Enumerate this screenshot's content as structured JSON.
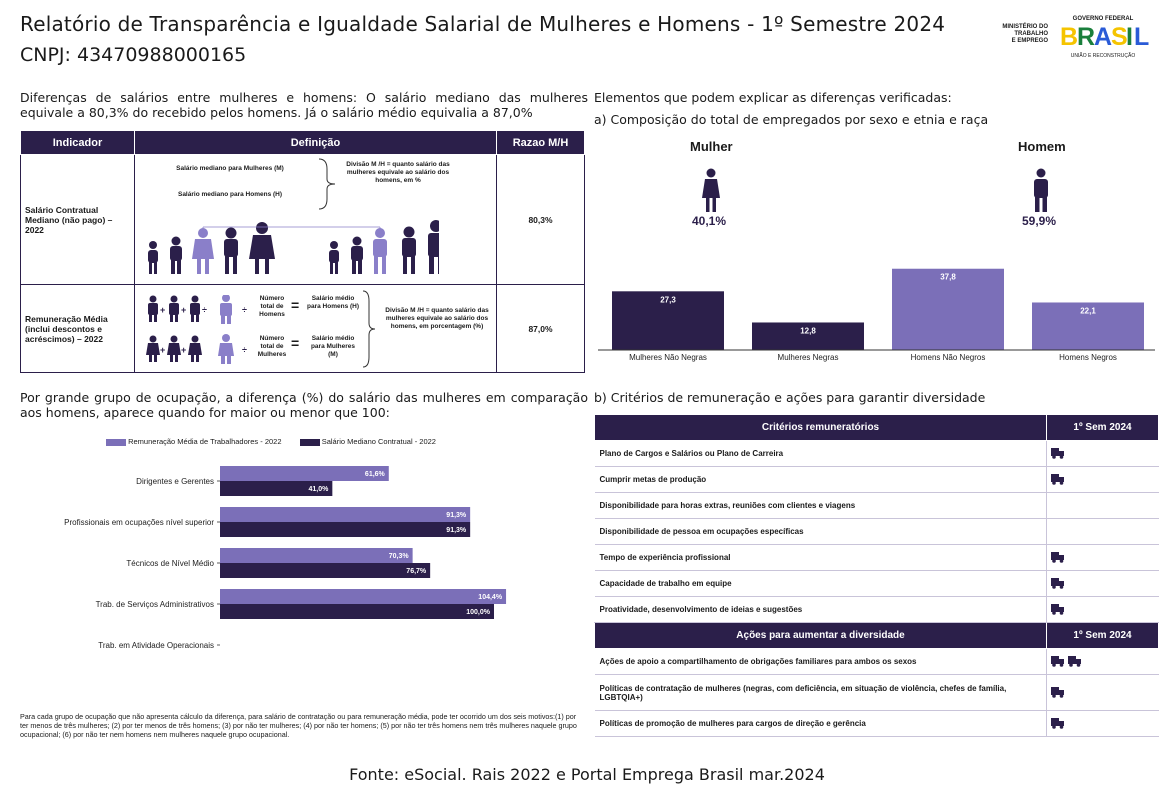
{
  "header": {
    "title": "Relatório de Transparência e Igualdade Salarial de Mulheres e Homens - 1º Semestre 2024",
    "cnpj": "CNPJ: 43470988000165",
    "mte_logo": [
      "MINISTÉRIO DO",
      "TRABALHO",
      "E EMPREGO"
    ],
    "gov_logo_top": "GOVERNO FEDERAL",
    "gov_logo_word": "BRASIL",
    "gov_logo_bottom": "UNIÃO E RECONSTRUÇÃO"
  },
  "left_intro": "Diferenças de salários entre mulheres e homens: O salário mediano das mulheres equivale a 80,3% do recebido pelos homens. Já o salário médio equivalia a 87,0%",
  "indicator_table": {
    "headers": [
      "Indicador",
      "Definição",
      "Razao M/H"
    ],
    "row1": {
      "indicator": "Salário Contratual Mediano (não pago) – 2022",
      "def_women": "Salário mediano para Mulheres (M)",
      "def_men": "Salário mediano para Homens (H)",
      "def_division": "Divisão M /H = quanto salário das mulheres equivale ao salário dos homens, em %",
      "ratio": "80,3%"
    },
    "row2": {
      "indicator": "Remuneração Média (inclui descontos e acréscimos) – 2022",
      "num_men": "Número total de Homens",
      "sal_men": "Salário médio para Homens (H)",
      "num_women": "Número total de Mulheres",
      "sal_women": "Salário médio para Mulheres (M)",
      "def_division": "Divisão M /H = quanto salário das mulheres equivale ao salário dos homens, em porcentagem (%)",
      "ratio": "87,0%"
    }
  },
  "right_intro": "Elementos que podem explicar as diferenças verificadas:",
  "right_a_label": "a) Composição do total de empregados por sexo e etnia e raça",
  "composition": {
    "women_label": "Mulher",
    "men_label": "Homem",
    "women_pct": "40,1%",
    "men_pct": "59,9%"
  },
  "chart_data": [
    {
      "type": "bar",
      "categories": [
        "Mulheres Não Negras",
        "Mulheres Negras",
        "Homens Não Negros",
        "Homens Negros"
      ],
      "values": [
        27.3,
        12.8,
        37.8,
        22.1
      ],
      "value_labels": [
        "27,3",
        "12,8",
        "37,8",
        "22,1"
      ],
      "colors": [
        "#2b1f4a",
        "#2b1f4a",
        "#7b6fb8",
        "#7b6fb8"
      ],
      "ylim": [
        0,
        40
      ]
    },
    {
      "type": "bar",
      "orientation": "horizontal",
      "categories": [
        "Dirigentes e Gerentes",
        "Profissionais em ocupações nível superior",
        "Técnicos de Nível Médio",
        "Trab. de Serviços Administrativos",
        "Trab. em Atividade Operacionais"
      ],
      "series": [
        {
          "name": "Remuneração Média de Trabalhadores - 2022",
          "color": "#7b6fb8",
          "values": [
            61.6,
            91.3,
            70.3,
            104.4,
            null
          ],
          "labels": [
            "61,6%",
            "91,3%",
            "70,3%",
            "104,4%",
            ""
          ]
        },
        {
          "name": "Salário Mediano Contratual - 2022",
          "color": "#2b1f4a",
          "values": [
            41.0,
            91.3,
            76.7,
            100.0,
            null
          ],
          "labels": [
            "41,0%",
            "91,3%",
            "76,7%",
            "100,0%",
            ""
          ]
        }
      ],
      "xlim": [
        0,
        110
      ]
    }
  ],
  "left_occ": "Por grande grupo de ocupação, a diferença (%) do salário das mulheres em comparação aos homens, aparece quando for maior ou menor que 100:",
  "footnote": "Para cada grupo de ocupação que não apresenta cálculo da diferença, para salário de contratação ou para remuneração média, pode ter ocorrido um dos seis motivos:(1) por ter menos de três mulheres; (2) por ter menos de três homens; (3) por não ter mulheres; (4) por não ter homens; (5) por não ter três homens nem três mulheres naquele grupo ocupacional; (6) por não ter nem homens nem mulheres naquele grupo ocupacional.",
  "right_b_label": "b) Critérios de remuneração e ações para garantir diversidade",
  "criteria": {
    "header": "Critérios remuneratórios",
    "col": "1º Sem 2024",
    "rows": [
      {
        "label": "Plano de Cargos e Salários ou Plano de Carreira",
        "icons": 1
      },
      {
        "label": "Cumprir metas de produção",
        "icons": 1
      },
      {
        "label": "Disponibilidade para horas extras, reuniões com clientes e viagens",
        "icons": 0
      },
      {
        "label": "Disponibilidade de pessoa em ocupações específicas",
        "icons": 0
      },
      {
        "label": "Tempo de experiência profissional",
        "icons": 1
      },
      {
        "label": "Capacidade de trabalho em equipe",
        "icons": 1
      },
      {
        "label": "Proatividade, desenvolvimento de ideias e sugestões",
        "icons": 1
      }
    ]
  },
  "actions": {
    "header": "Ações para aumentar a diversidade",
    "col": "1º Sem 2024",
    "rows": [
      {
        "label": "Ações de apoio a compartilhamento de obrigações familiares para ambos os sexos",
        "icons": 2
      },
      {
        "label": "Políticas de contratação de mulheres (negras, com deficiência, em situação de violência, chefes de família, LGBTQIA+)",
        "icons": 1
      },
      {
        "label": "Políticas de promoção de mulheres para cargos de direção e gerência",
        "icons": 1
      }
    ]
  },
  "source": "Fonte: eSocial. Rais 2022 e Portal Emprega Brasil mar.2024"
}
